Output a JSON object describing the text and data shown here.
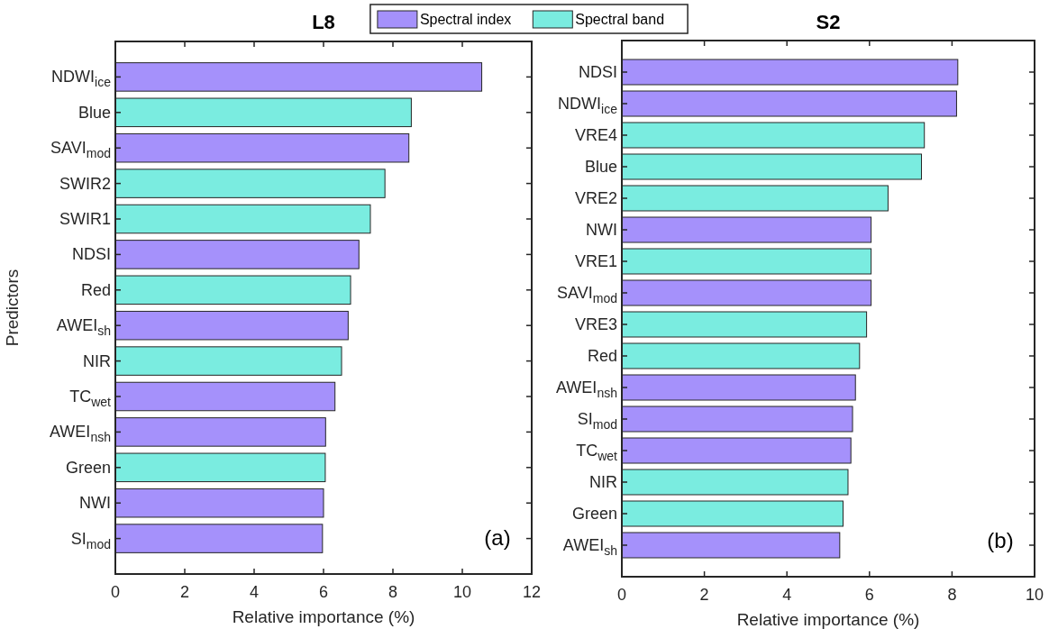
{
  "chart_data": [
    {
      "type": "bar",
      "orientation": "horizontal",
      "title": "L8",
      "xlabel": "Relative importance (%)",
      "ylabel": "Predictors",
      "legend": "top",
      "annotations": [
        "(a)"
      ],
      "categories": [
        "NDWI$_{ice}$",
        "Blue",
        "SAVI$_{mod}$",
        "SWIR2",
        "SWIR1",
        "NDSI",
        "Red",
        "AWEI$_{sh}$",
        "NIR",
        "TC$_{wet}$",
        "AWEI$_{nsh}$",
        "Green",
        "NWI",
        "SI$_{mod}$"
      ],
      "series": [
        {
          "name": "Spectral index",
          "color": "#a591fb",
          "values": [
            10.56,
            null,
            8.46,
            null,
            null,
            7.02,
            null,
            6.71,
            null,
            6.33,
            6.06,
            null,
            6.0,
            5.97
          ]
        },
        {
          "name": "Spectral band",
          "color": "#7aece0",
          "values": [
            null,
            8.53,
            null,
            7.77,
            7.35,
            null,
            6.78,
            null,
            6.52,
            null,
            null,
            6.05,
            null,
            null
          ]
        }
      ],
      "xlim": [
        0,
        12
      ],
      "xticks": [
        0,
        2,
        4,
        6,
        8,
        10,
        12
      ]
    },
    {
      "type": "bar",
      "orientation": "horizontal",
      "title": "S2",
      "xlabel": "Relative importance (%)",
      "annotations": [
        "(b)"
      ],
      "categories": [
        "NDSI",
        "NDWI$_{ice}$",
        "VRE4",
        "Blue",
        "VRE2",
        "NWI",
        "VRE1",
        "SAVI$_{mod}$",
        "VRE3",
        "Red",
        "AWEI$_{nsh}$",
        "SI$_{mod}$",
        "TC$_{wet}$",
        "NIR",
        "Green",
        "AWEI$_{sh}$"
      ],
      "series": [
        {
          "color": "#a591fb",
          "values": [
            8.14,
            8.11,
            null,
            null,
            null,
            6.04,
            null,
            6.04,
            null,
            null,
            5.66,
            5.59,
            5.55,
            null,
            null,
            5.28
          ]
        },
        {
          "color": "#7aece0",
          "values": [
            null,
            null,
            7.33,
            7.26,
            6.45,
            null,
            6.04,
            null,
            5.93,
            5.76,
            null,
            null,
            null,
            5.48,
            5.36,
            null
          ]
        }
      ],
      "xlim": [
        0,
        10
      ],
      "xticks": [
        0,
        2,
        4,
        6,
        8,
        10
      ]
    }
  ]
}
